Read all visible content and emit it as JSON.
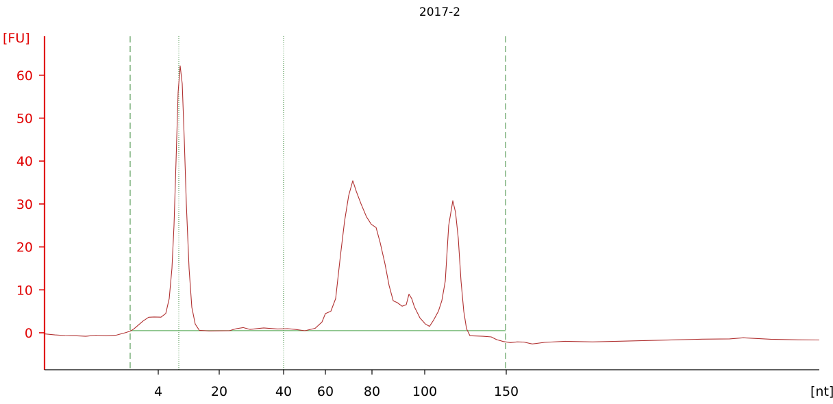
{
  "chart_data": {
    "type": "line",
    "title": "2017-2",
    "ylabel": "[FU]",
    "xlabel": "[nt]",
    "ylim": [
      -8,
      68
    ],
    "y_ticks": [
      0,
      10,
      20,
      30,
      40,
      50,
      60
    ],
    "x_tick_labels": [
      "4",
      "20",
      "40",
      "60",
      "80",
      "100",
      "150"
    ],
    "region_markers": [
      "start",
      "end"
    ],
    "peak_markers": [
      "4",
      "40"
    ],
    "grid": false,
    "legend": "none",
    "colors": {
      "signal": "#b03030",
      "y_axis": "#e00000",
      "baseline": "#66b066",
      "markers": "#3a8a3a"
    },
    "series": [
      {
        "values": [
          [
            0,
            -0.3
          ],
          [
            15,
            -0.5
          ],
          [
            30,
            -0.6
          ],
          [
            45,
            -0.7
          ],
          [
            60,
            -0.8
          ],
          [
            75,
            -0.6
          ],
          [
            90,
            -0.7
          ],
          [
            105,
            -0.5
          ],
          [
            118,
            0
          ],
          [
            125,
            0.4
          ],
          [
            130,
            0.8
          ],
          [
            137,
            1.8
          ],
          [
            144,
            2.8
          ],
          [
            152,
            3.6
          ],
          [
            160,
            3.7
          ],
          [
            170,
            3.6
          ],
          [
            177,
            4.5
          ],
          [
            182,
            8
          ],
          [
            186,
            15
          ],
          [
            189,
            25
          ],
          [
            192,
            40
          ],
          [
            195,
            56
          ],
          [
            198,
            62.2
          ],
          [
            201,
            58
          ],
          [
            204,
            45
          ],
          [
            207,
            30
          ],
          [
            211,
            15
          ],
          [
            215,
            6
          ],
          [
            220,
            2
          ],
          [
            226,
            0.6
          ],
          [
            240,
            0.4
          ],
          [
            270,
            0.5
          ],
          [
            280,
            1
          ],
          [
            290,
            1.2
          ],
          [
            300,
            0.8
          ],
          [
            320,
            1.1
          ],
          [
            340,
            0.9
          ],
          [
            355,
            1
          ],
          [
            365,
            0.8
          ],
          [
            380,
            0.5
          ],
          [
            395,
            1
          ],
          [
            405,
            2.5
          ],
          [
            410,
            4.5
          ],
          [
            418,
            5
          ],
          [
            425,
            8
          ],
          [
            432,
            18
          ],
          [
            438,
            26
          ],
          [
            444,
            32
          ],
          [
            450,
            35.4
          ],
          [
            455,
            33
          ],
          [
            462,
            30
          ],
          [
            470,
            27
          ],
          [
            477,
            25.3
          ],
          [
            484,
            24.5
          ],
          [
            490,
            21
          ],
          [
            497,
            16
          ],
          [
            503,
            11
          ],
          [
            509,
            7.5
          ],
          [
            515,
            7
          ],
          [
            522,
            6.2
          ],
          [
            528,
            6.5
          ],
          [
            532,
            9
          ],
          [
            536,
            8
          ],
          [
            540,
            6
          ],
          [
            548,
            3.5
          ],
          [
            556,
            2
          ],
          [
            562,
            1.5
          ],
          [
            568,
            3
          ],
          [
            575,
            5
          ],
          [
            580,
            7.5
          ],
          [
            585,
            12
          ],
          [
            590,
            25
          ],
          [
            596,
            30.8
          ],
          [
            600,
            28
          ],
          [
            604,
            22
          ],
          [
            608,
            12
          ],
          [
            612,
            5
          ],
          [
            616,
            1
          ],
          [
            621,
            -0.7
          ],
          [
            640,
            -0.8
          ],
          [
            652,
            -1
          ],
          [
            660,
            -1.6
          ],
          [
            670,
            -2
          ],
          [
            680,
            -2.3
          ],
          [
            690,
            -2.1
          ],
          [
            700,
            -2.2
          ],
          [
            712,
            -2.6
          ],
          [
            730,
            -2.2
          ],
          [
            760,
            -2
          ],
          [
            800,
            -2.1
          ],
          [
            840,
            -2
          ],
          [
            880,
            -1.8
          ],
          [
            920,
            -1.6
          ],
          [
            960,
            -1.5
          ],
          [
            1000,
            -1.4
          ],
          [
            1020,
            -1.2
          ],
          [
            1060,
            -1.5
          ],
          [
            1100,
            -1.6
          ],
          [
            1131,
            -1.7
          ]
        ]
      }
    ]
  }
}
